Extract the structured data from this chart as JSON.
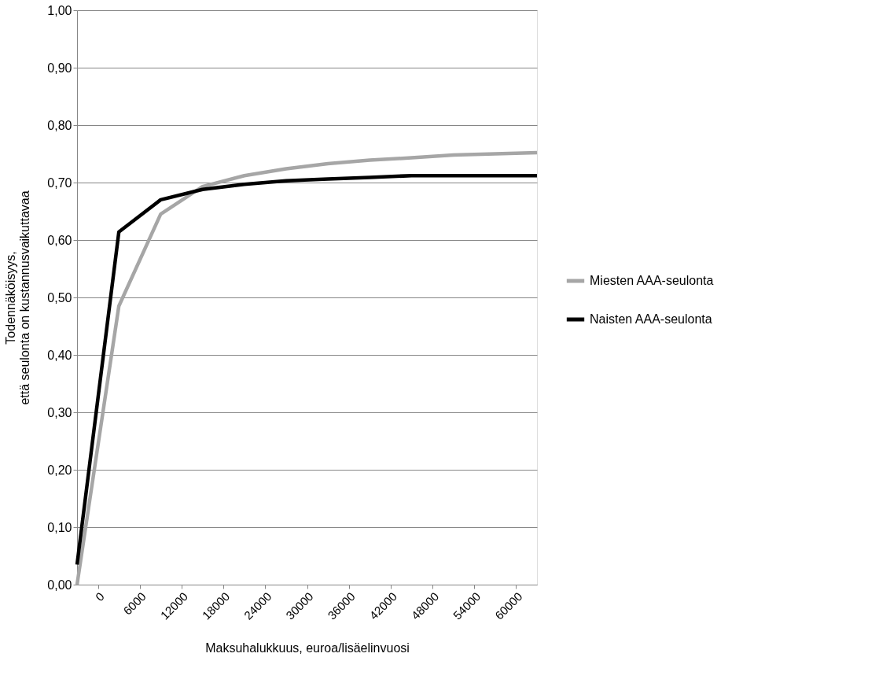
{
  "chart_data": {
    "type": "line",
    "xlabel": "Maksuhalukkuus, euroa/lisäelinvuosi",
    "ylabel": "Todennäköisyys, että seulonta on kustannusvaikuttavaa",
    "x": [
      -3000,
      3000,
      9000,
      15000,
      21000,
      27000,
      33000,
      39000,
      45000,
      51000,
      57000,
      63000
    ],
    "series": [
      {
        "name": "Miesten AAA-seulonta",
        "color": "#a6a6a6",
        "values": [
          0.0,
          0.485,
          0.645,
          0.693,
          0.712,
          0.724,
          0.733,
          0.739,
          0.743,
          0.748,
          0.75,
          0.752
        ]
      },
      {
        "name": "Naisten AAA-seulonta",
        "color": "#000000",
        "values": [
          0.035,
          0.614,
          0.67,
          0.688,
          0.697,
          0.703,
          0.706,
          0.709,
          0.712,
          0.712,
          0.712,
          0.712
        ]
      }
    ],
    "xlim": [
      -3000,
      63000
    ],
    "xticks": [
      0,
      6000,
      12000,
      18000,
      24000,
      30000,
      36000,
      42000,
      48000,
      54000,
      60000
    ],
    "ylim": [
      0,
      1
    ],
    "yticks": [
      {
        "value": 0,
        "label": "0,00"
      },
      {
        "value": 0.1,
        "label": "0,10"
      },
      {
        "value": 0.2,
        "label": "0,20"
      },
      {
        "value": 0.3,
        "label": "0,30"
      },
      {
        "value": 0.4,
        "label": "0,40"
      },
      {
        "value": 0.5,
        "label": "0,50"
      },
      {
        "value": 0.6,
        "label": "0,60"
      },
      {
        "value": 0.7,
        "label": "0,70"
      },
      {
        "value": 0.8,
        "label": "0,80"
      },
      {
        "value": 0.9,
        "label": "0,90"
      },
      {
        "value": 1.0,
        "label": "1,00"
      }
    ],
    "grid": "y",
    "legend": "right",
    "marker": "none",
    "line_style": "solid"
  }
}
